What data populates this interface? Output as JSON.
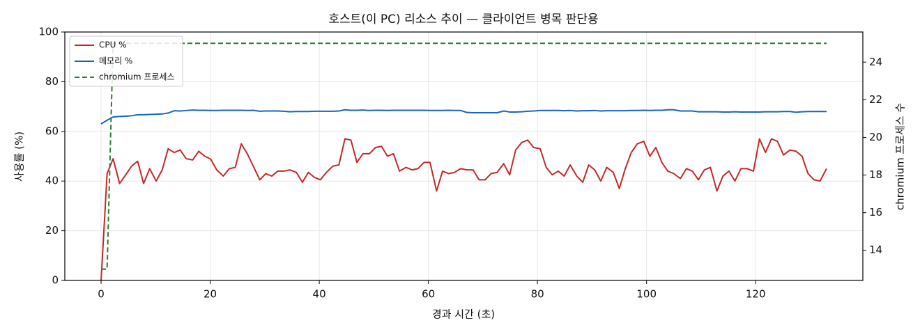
{
  "chart_data": {
    "type": "line",
    "title": "호스트(이 PC) 리소스 추이 — 클라이언트 병목 판단용",
    "x_label": "경과 시간 (초)",
    "y_label": "사용률 (%)",
    "y2_label": "chromium 프로세스 수",
    "x": [
      0,
      1.1,
      2.2,
      3.4,
      4.5,
      5.6,
      6.7,
      7.8,
      8.9,
      10.1,
      11.2,
      12.3,
      13.4,
      14.5,
      15.6,
      16.8,
      17.9,
      19.0,
      20.1,
      21.2,
      22.4,
      23.5,
      24.6,
      25.7,
      26.8,
      27.9,
      29.1,
      30.2,
      31.3,
      32.4,
      33.5,
      34.6,
      35.8,
      36.9,
      38.0,
      39.1,
      40.2,
      41.3,
      42.5,
      43.6,
      44.7,
      45.8,
      46.9,
      48.0,
      49.2,
      50.3,
      51.4,
      52.5,
      53.6,
      54.7,
      55.9,
      57.0,
      58.1,
      59.2,
      60.3,
      61.5,
      62.6,
      63.7,
      64.8,
      65.9,
      67.1,
      68.2,
      69.3,
      70.4,
      71.5,
      72.6,
      73.8,
      74.9,
      76.0,
      77.1,
      78.2,
      79.3,
      80.5,
      81.6,
      82.7,
      83.8,
      84.9,
      86.0,
      87.2,
      88.3,
      89.4,
      90.5,
      91.6,
      92.7,
      93.9,
      95.0,
      96.1,
      97.2,
      98.3,
      99.5,
      100.6,
      101.7,
      102.8,
      103.9,
      105.0,
      106.2,
      107.3,
      108.4,
      109.5,
      110.6,
      111.7,
      112.9,
      114.0,
      115.1,
      116.2,
      117.3,
      118.4,
      119.6,
      120.7,
      121.8,
      122.9,
      124.0,
      125.1,
      126.3,
      127.4,
      128.5,
      129.6,
      130.7,
      131.8,
      133.0
    ],
    "series": [
      {
        "name": "CPU %",
        "color": "#c62828",
        "linestyle": "solid",
        "values": [
          0,
          43,
          49,
          39,
          42.5,
          46,
          48,
          39,
          45,
          40,
          44.5,
          53,
          51.5,
          52.5,
          49,
          48.5,
          52,
          50,
          48.8,
          44.5,
          42,
          45,
          45.5,
          55,
          51,
          46,
          40.5,
          43,
          42,
          44,
          44,
          44.5,
          43.5,
          39.5,
          43.5,
          41.5,
          40.5,
          43.5,
          46,
          46.5,
          57,
          56.5,
          47.5,
          51,
          51,
          53.5,
          54,
          50,
          51,
          44,
          45.5,
          44.5,
          45,
          47.5,
          47.5,
          36,
          44,
          43,
          43.5,
          45,
          44.5,
          44.5,
          40.5,
          40.5,
          43,
          43.5,
          47,
          42.5,
          52.5,
          55.5,
          56.5,
          53.5,
          53,
          45.5,
          42.5,
          44,
          42,
          46.5,
          42,
          39.5,
          46.5,
          44.5,
          40,
          45.5,
          43.5,
          37,
          45,
          51.5,
          55,
          56,
          50,
          53.5,
          47.5,
          44,
          43,
          41,
          45,
          44,
          40.5,
          44.5,
          45.5,
          36,
          42,
          44,
          40,
          45,
          45,
          44,
          57,
          51.5,
          57,
          56,
          50.5,
          52.5,
          52,
          50,
          43,
          40.5,
          40,
          45
        ]
      },
      {
        "name": "메모리 %",
        "color": "#1565c0",
        "linestyle": "solid",
        "values": [
          63,
          64.5,
          65.8,
          66,
          66.1,
          66.3,
          66.7,
          66.7,
          66.8,
          66.9,
          67,
          67.4,
          68.3,
          68.2,
          68.4,
          68.6,
          68.5,
          68.5,
          68.4,
          68.4,
          68.5,
          68.5,
          68.5,
          68.5,
          68.4,
          68.5,
          68.1,
          68.2,
          68.2,
          68.2,
          68.1,
          67.9,
          68,
          68,
          68,
          68.1,
          68.1,
          68.1,
          68.1,
          68.2,
          68.7,
          68.5,
          68.5,
          68.6,
          68.4,
          68.5,
          68.5,
          68.4,
          68.5,
          68.5,
          68.5,
          68.5,
          68.5,
          68.5,
          68.4,
          68.4,
          68.4,
          68.5,
          68.4,
          68.4,
          67.6,
          67.5,
          67.5,
          67.5,
          67.5,
          67.5,
          68.2,
          67.8,
          67.8,
          67.9,
          68.1,
          68.2,
          68.4,
          68.4,
          68.4,
          68.4,
          68.3,
          68.4,
          68.2,
          68.3,
          68.3,
          68.4,
          68.2,
          68.3,
          68.3,
          68.3,
          68.3,
          68.4,
          68.4,
          68.5,
          68.4,
          68.5,
          68.5,
          68.7,
          68.7,
          68.2,
          68.2,
          68.2,
          67.9,
          67.9,
          67.9,
          67.9,
          67.8,
          67.8,
          67.9,
          67.8,
          67.8,
          67.8,
          67.8,
          67.9,
          67.9,
          67.9,
          68,
          68,
          67.7,
          67.9,
          68,
          68,
          68,
          68
        ]
      },
      {
        "name": "chromium 프로세스",
        "color": "#2e7d32",
        "linestyle": "dashed",
        "axis": "y2",
        "values": [
          13,
          13,
          25,
          25,
          25,
          25,
          25,
          25,
          25,
          25,
          25,
          25,
          25,
          25,
          25,
          25,
          25,
          25,
          25,
          25,
          25,
          25,
          25,
          25,
          25,
          25,
          25,
          25,
          25,
          25,
          25,
          25,
          25,
          25,
          25,
          25,
          25,
          25,
          25,
          25,
          25,
          25,
          25,
          25,
          25,
          25,
          25,
          25,
          25,
          25,
          25,
          25,
          25,
          25,
          25,
          25,
          25,
          25,
          25,
          25,
          25,
          25,
          25,
          25,
          25,
          25,
          25,
          25,
          25,
          25,
          25,
          25,
          25,
          25,
          25,
          25,
          25,
          25,
          25,
          25,
          25,
          25,
          25,
          25,
          25,
          25,
          25,
          25,
          25,
          25,
          25,
          25,
          25,
          25,
          25,
          25,
          25,
          25,
          25,
          25,
          25,
          25,
          25,
          25,
          25,
          25,
          25,
          25,
          25,
          25,
          25,
          25,
          25,
          25,
          25,
          25,
          25,
          25,
          25,
          25
        ]
      }
    ],
    "xlim": [
      -6.65,
      139.65
    ],
    "xticks": [
      0,
      20,
      40,
      60,
      80,
      100,
      120
    ],
    "ylim": [
      0,
      100
    ],
    "yticks": [
      0,
      20,
      40,
      60,
      80,
      100
    ],
    "y2lim": [
      12.4,
      25.6
    ],
    "y2ticks": [
      14,
      16,
      18,
      20,
      22,
      24
    ],
    "grid": true,
    "legend": "upper left"
  }
}
